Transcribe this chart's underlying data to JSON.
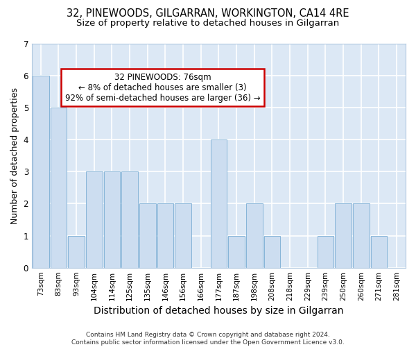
{
  "title": "32, PINEWOODS, GILGARRAN, WORKINGTON, CA14 4RE",
  "subtitle": "Size of property relative to detached houses in Gilgarran",
  "xlabel": "Distribution of detached houses by size in Gilgarran",
  "ylabel": "Number of detached properties",
  "categories": [
    "73sqm",
    "83sqm",
    "93sqm",
    "104sqm",
    "114sqm",
    "125sqm",
    "135sqm",
    "146sqm",
    "156sqm",
    "166sqm",
    "177sqm",
    "187sqm",
    "198sqm",
    "208sqm",
    "218sqm",
    "229sqm",
    "239sqm",
    "250sqm",
    "260sqm",
    "271sqm",
    "281sqm"
  ],
  "values": [
    6,
    5,
    1,
    3,
    3,
    3,
    2,
    2,
    2,
    0,
    4,
    1,
    2,
    1,
    0,
    0,
    1,
    2,
    2,
    1,
    0
  ],
  "bar_color": "#ccddf0",
  "bar_edge_color": "#7aadd4",
  "annotation_text": "32 PINEWOODS: 76sqm\n← 8% of detached houses are smaller (3)\n92% of semi-detached houses are larger (36) →",
  "annotation_box_color": "#ffffff",
  "annotation_box_edge": "#cc0000",
  "ylim": [
    0,
    7
  ],
  "yticks": [
    0,
    1,
    2,
    3,
    4,
    5,
    6,
    7
  ],
  "footer": "Contains HM Land Registry data © Crown copyright and database right 2024.\nContains public sector information licensed under the Open Government Licence v3.0.",
  "bg_color": "#ffffff",
  "plot_bg_color": "#dce8f5",
  "grid_color": "#ffffff",
  "title_fontsize": 10.5,
  "subtitle_fontsize": 9.5,
  "axis_label_fontsize": 9,
  "tick_fontsize": 7.5,
  "footer_fontsize": 6.5
}
